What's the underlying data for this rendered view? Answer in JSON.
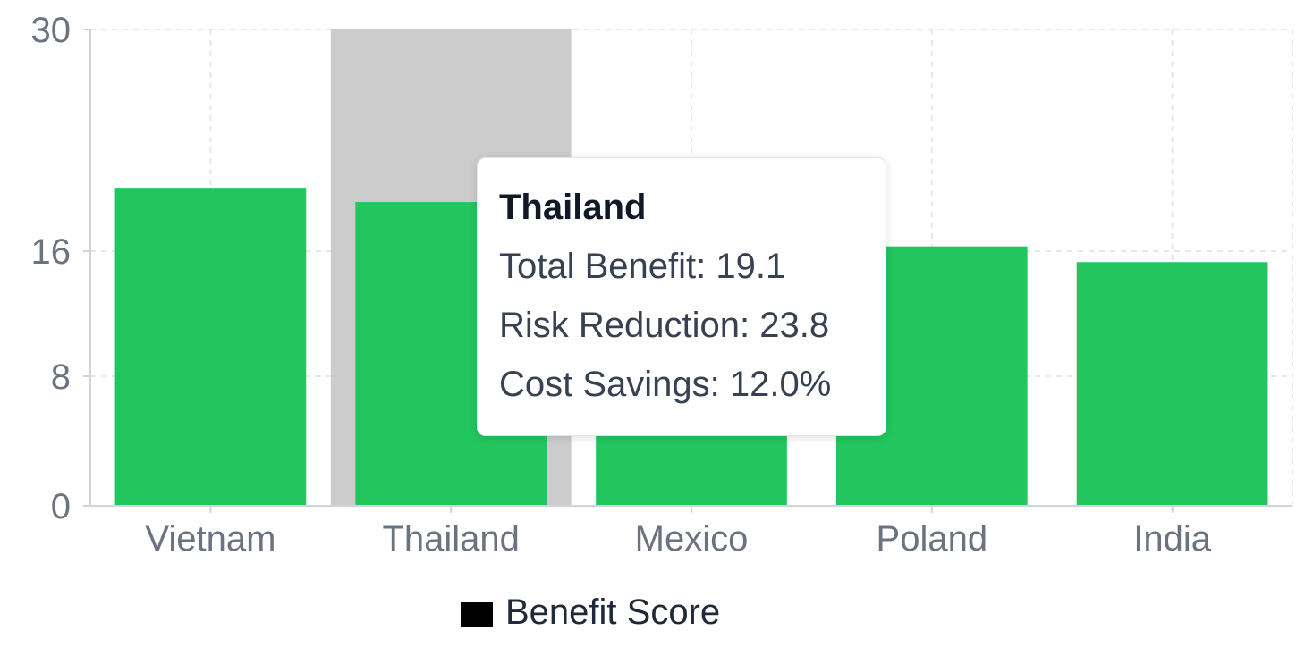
{
  "chart_data": {
    "type": "bar",
    "categories": [
      "Vietnam",
      "Thailand",
      "Mexico",
      "Poland",
      "India"
    ],
    "series": [
      {
        "name": "Benefit Score",
        "values": [
          20,
          19.1,
          16.8,
          16.3,
          15.3
        ],
        "color": "#22c55e"
      }
    ],
    "ylim": [
      0,
      30
    ],
    "yticks": [
      0,
      8,
      16,
      30
    ],
    "grid": true,
    "legend": "bottom-center",
    "legend_swatch_color": "#000000",
    "highlight_color": "#cccccc",
    "highlighted_category": "Thailand"
  },
  "tooltip": {
    "title": "Thailand",
    "total_benefit": "Total Benefit: 19.1",
    "risk_reduction": "Risk Reduction: 23.8",
    "cost_savings": "Cost Savings: 12.0%"
  }
}
